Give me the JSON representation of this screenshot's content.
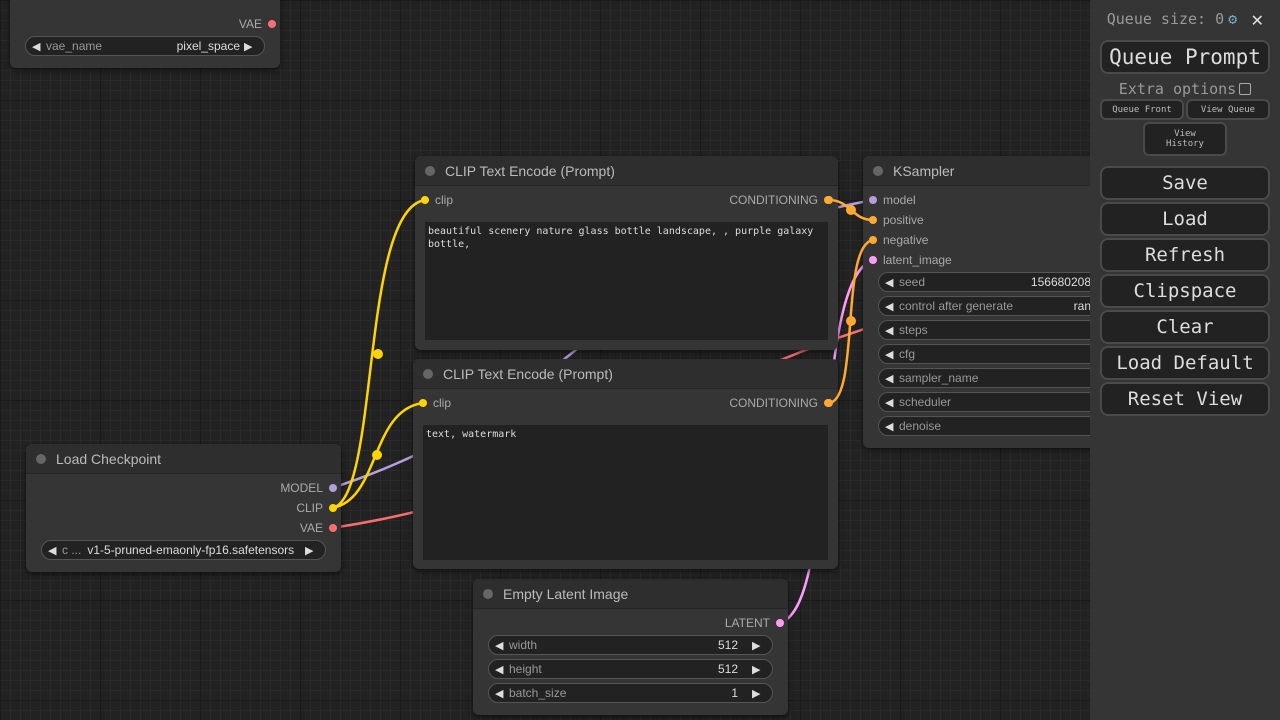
{
  "colors": {
    "model": "#b39ddb",
    "clip": "#ffd500",
    "vae": "#ff6e6e",
    "conditioning": "#ffa931",
    "latent": "#ff9cf9"
  },
  "vae_loader": {
    "output": "VAE",
    "widget": {
      "label": "vae_name",
      "value": "pixel_space"
    }
  },
  "clip1": {
    "title": "CLIP Text Encode (Prompt)",
    "input": "clip",
    "output": "CONDITIONING",
    "text": "beautiful scenery nature glass bottle landscape, , purple galaxy bottle,"
  },
  "clip2": {
    "title": "CLIP Text Encode (Prompt)",
    "input": "clip",
    "output": "CONDITIONING",
    "text": "text, watermark"
  },
  "ksampler": {
    "title": "KSampler",
    "inputs": [
      "model",
      "positive",
      "negative",
      "latent_image"
    ],
    "widgets": [
      {
        "label": "seed",
        "value": "156680208"
      },
      {
        "label": "control after generate",
        "value": "ran"
      },
      {
        "label": "steps",
        "value": ""
      },
      {
        "label": "cfg",
        "value": ""
      },
      {
        "label": "sampler_name",
        "value": ""
      },
      {
        "label": "scheduler",
        "value": ""
      },
      {
        "label": "denoise",
        "value": ""
      }
    ]
  },
  "checkpoint": {
    "title": "Load Checkpoint",
    "outputs": [
      "MODEL",
      "CLIP",
      "VAE"
    ],
    "widget": {
      "label": "c ...",
      "value": "v1-5-pruned-emaonly-fp16.safetensors"
    }
  },
  "latent": {
    "title": "Empty Latent Image",
    "output": "LATENT",
    "widgets": [
      {
        "label": "width",
        "value": "512"
      },
      {
        "label": "height",
        "value": "512"
      },
      {
        "label": "batch_size",
        "value": "1"
      }
    ]
  },
  "sidebar": {
    "queue_size": "Queue size: 0",
    "queue_prompt": "Queue Prompt",
    "extra_options": "Extra options",
    "queue_front": "Queue Front",
    "view_queue": "View Queue",
    "view_history": "View History",
    "buttons": [
      "Save",
      "Load",
      "Refresh",
      "Clipspace",
      "Clear",
      "Load Default",
      "Reset View"
    ]
  }
}
